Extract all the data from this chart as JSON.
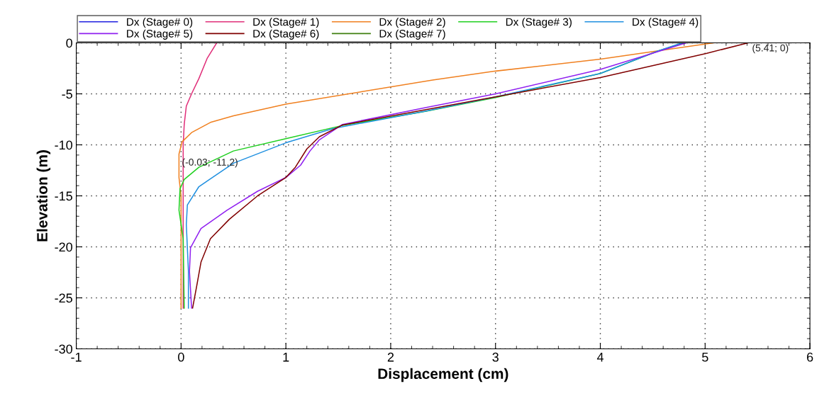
{
  "chart_data": {
    "type": "line",
    "xlabel": "Displacement (cm)",
    "ylabel": "Elevation (m)",
    "xlim": [
      -1,
      6
    ],
    "ylim": [
      -30,
      0
    ],
    "xticks": [
      -1,
      0,
      1,
      2,
      3,
      4,
      5,
      6
    ],
    "yticks": [
      -30,
      -25,
      -20,
      -15,
      -10,
      -5,
      0
    ],
    "grid": true,
    "legend": "top",
    "line_style": "solid",
    "marker": "none",
    "annotations": [
      {
        "text": "(-0.03; -11,2)",
        "x": -0.03,
        "y": -11.2
      },
      {
        "text": "(5.41; 0)",
        "x": 5.41,
        "y": 0
      }
    ],
    "series": [
      {
        "name": "Dx (Stage# 0)",
        "color": "#2020e0"
      },
      {
        "name": "Dx (Stage# 1)",
        "color": "#e0307a",
        "x": [
          0.34,
          0.25,
          0.17,
          0.1,
          0.05,
          0.03,
          0.02,
          0.02,
          0.02,
          0.02
        ],
        "values": [
          0,
          -1.5,
          -3.5,
          -5,
          -6.2,
          -8,
          -10,
          -14,
          -20,
          -26
        ]
      },
      {
        "name": "Dx (Stage# 2)",
        "color": "#f08020",
        "x": [
          5.08,
          4.0,
          3.0,
          2.4,
          1.0,
          0.5,
          0.28,
          0.1,
          0.01,
          -0.02,
          -0.02,
          0.0,
          0.0
        ],
        "values": [
          0,
          -1.6,
          -2.77,
          -3.65,
          -6.0,
          -7.15,
          -7.8,
          -8.8,
          -9.7,
          -10.9,
          -13.2,
          -15,
          -26
        ]
      },
      {
        "name": "Dx (Stage# 3)",
        "color": "#20d020",
        "x": [
          4.8,
          4.55,
          4.0,
          3.0,
          2.33,
          1.54,
          1.0,
          0.5,
          0.17,
          0.03,
          -0.01,
          -0.02,
          0.02,
          0.03
        ],
        "values": [
          0,
          -0.8,
          -3.0,
          -5.37,
          -6.72,
          -8.1,
          -9.4,
          -10.6,
          -12.2,
          -13.4,
          -14.3,
          -16.4,
          -19.2,
          -26
        ]
      },
      {
        "name": "Dx (Stage# 4)",
        "color": "#2090e0",
        "x": [
          4.78,
          4.55,
          4.0,
          3.0,
          2.33,
          1.45,
          1.0,
          0.5,
          0.17,
          0.06,
          0.05,
          0.07,
          0.07
        ],
        "values": [
          0,
          -0.8,
          -3.0,
          -5.3,
          -6.7,
          -8.4,
          -9.8,
          -11.8,
          -14.1,
          -15.9,
          -17.8,
          -22.4,
          -26
        ]
      },
      {
        "name": "Dx (Stage# 5)",
        "color": "#9020f0",
        "x": [
          4.82,
          4.0,
          3.0,
          2.33,
          1.54,
          1.32,
          1.23,
          1.14,
          1.0,
          0.73,
          0.44,
          0.19,
          0.09,
          0.08,
          0.1
        ],
        "values": [
          0,
          -2.6,
          -5.0,
          -6.36,
          -8.0,
          -9.5,
          -10.6,
          -12.0,
          -13.2,
          -14.55,
          -16.4,
          -18.2,
          -20.1,
          -22.4,
          -26
        ]
      },
      {
        "name": "Dx (Stage# 6)",
        "color": "#800000",
        "x": [
          5.41,
          5.01,
          4.0,
          3.0,
          1.54,
          1.32,
          1.2,
          1.09,
          1.0,
          0.73,
          0.46,
          0.28,
          0.19,
          0.15,
          0.11
        ],
        "values": [
          0,
          -1.04,
          -3.4,
          -5.3,
          -8.05,
          -9.2,
          -10.4,
          -12.2,
          -13.2,
          -15.0,
          -17.3,
          -19.2,
          -21.5,
          -23.8,
          -26
        ]
      },
      {
        "name": "Dx (Stage# 7)",
        "color": "#408010"
      }
    ]
  }
}
